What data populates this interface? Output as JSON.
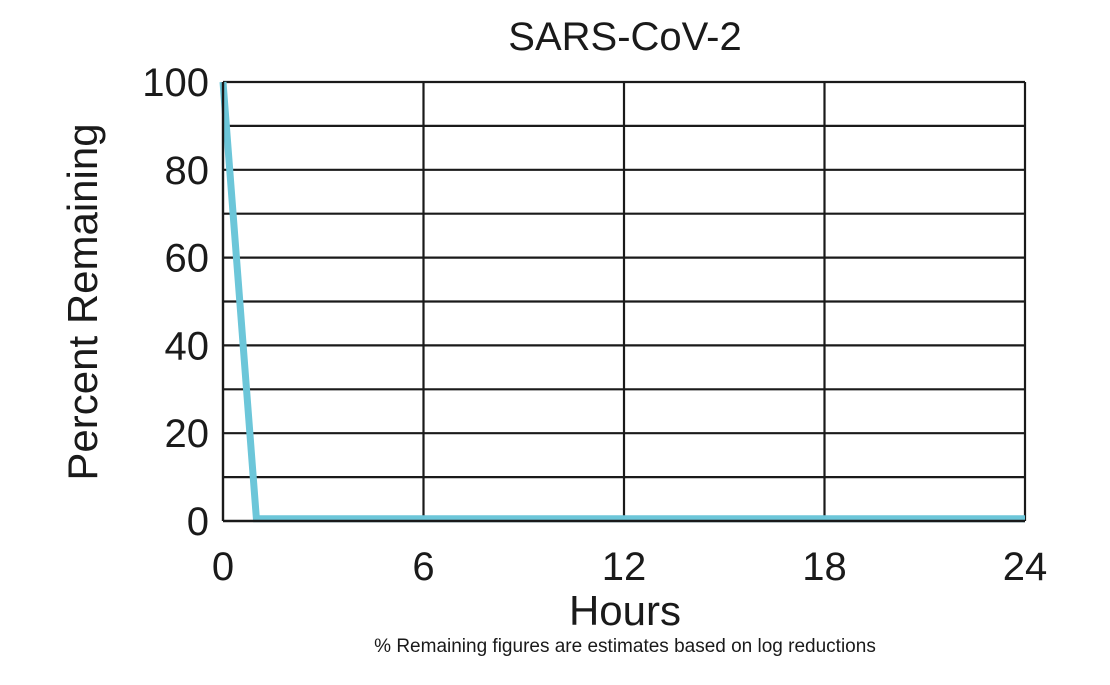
{
  "chart_data": {
    "type": "line",
    "title": "SARS-CoV-2",
    "xlabel": "Hours",
    "ylabel": "Percent Remaining",
    "footnote": "% Remaining figures are estimates based on log reductions",
    "xlim": [
      0,
      24
    ],
    "ylim": [
      0,
      100
    ],
    "x_ticks": [
      0,
      6,
      12,
      18,
      24
    ],
    "x_tick_labels": [
      "0",
      "6",
      "12",
      "18",
      "24"
    ],
    "y_ticks": [
      0,
      20,
      40,
      60,
      80,
      100
    ],
    "y_tick_labels": [
      "0",
      "20",
      "40",
      "60",
      "80",
      "100"
    ],
    "y_gridlines": [
      10,
      20,
      30,
      40,
      50,
      60,
      70,
      80,
      90,
      100
    ],
    "x_gridlines": [
      6,
      12,
      18,
      24
    ],
    "grid": true,
    "series": [
      {
        "color": "#6cc6d9",
        "points": [
          {
            "x": 0,
            "y": 100
          },
          {
            "x": 1,
            "y": 0.5
          },
          {
            "x": 24,
            "y": 0.5
          }
        ]
      }
    ]
  }
}
